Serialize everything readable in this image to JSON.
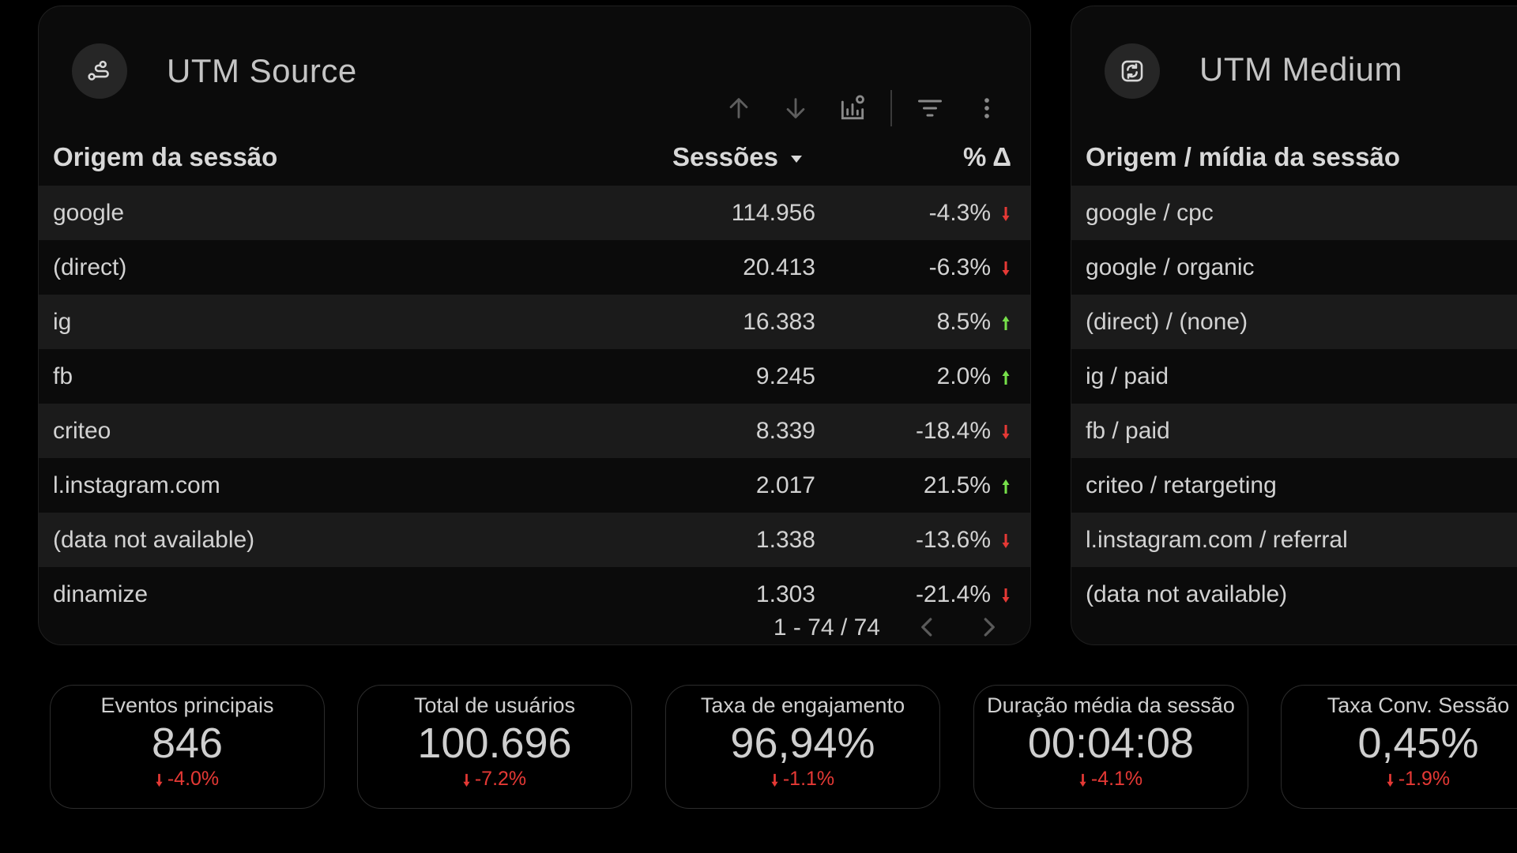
{
  "colors": {
    "up": "#76e04a",
    "down": "#e53935",
    "icon_stroke": "#d8d8d8"
  },
  "source_panel": {
    "title": "UTM Source",
    "icon": "path-share-icon",
    "toolbar": [
      "sort-ascending-icon",
      "sort-descending-icon",
      "chart-settings-icon",
      "filter-icon",
      "more-vert-icon"
    ],
    "columns": {
      "name": "Origem da sessão",
      "sessions": "Sessões",
      "pct": "% Δ"
    },
    "rows": [
      {
        "name": "google",
        "sessions": "114.956",
        "pct": "-4.3%",
        "dir": "down"
      },
      {
        "name": "(direct)",
        "sessions": "20.413",
        "pct": "-6.3%",
        "dir": "down"
      },
      {
        "name": "ig",
        "sessions": "16.383",
        "pct": "8.5%",
        "dir": "up"
      },
      {
        "name": "fb",
        "sessions": "9.245",
        "pct": "2.0%",
        "dir": "up"
      },
      {
        "name": "criteo",
        "sessions": "8.339",
        "pct": "-18.4%",
        "dir": "down"
      },
      {
        "name": "l.instagram.com",
        "sessions": "2.017",
        "pct": "21.5%",
        "dir": "up"
      },
      {
        "name": "(data not available)",
        "sessions": "1.338",
        "pct": "-13.6%",
        "dir": "down"
      },
      {
        "name": "dinamize",
        "sessions": "1.303",
        "pct": "-21.4%",
        "dir": "down"
      }
    ],
    "pager": {
      "range": "1 - 74 / 74",
      "prev_icon": "chevron-left-icon",
      "next_icon": "chevron-right-icon"
    }
  },
  "medium_panel": {
    "title": "UTM Medium",
    "icon": "sync-icon",
    "columns": {
      "name": "Origem / mídia da sessão"
    },
    "rows": [
      {
        "name": "google / cpc"
      },
      {
        "name": "google / organic"
      },
      {
        "name": "(direct) / (none)"
      },
      {
        "name": "ig / paid"
      },
      {
        "name": "fb / paid"
      },
      {
        "name": "criteo / retargeting"
      },
      {
        "name": "l.instagram.com / referral"
      },
      {
        "name": "(data not available)"
      }
    ]
  },
  "kpis": [
    {
      "label": "Eventos principais",
      "value": "846",
      "delta": "-4.0%",
      "dir": "down"
    },
    {
      "label": "Total de usuários",
      "value": "100.696",
      "delta": "-7.2%",
      "dir": "down"
    },
    {
      "label": "Taxa de engajamento",
      "value": "96,94%",
      "delta": "-1.1%",
      "dir": "down"
    },
    {
      "label": "Duração média da sessão",
      "value": "00:04:08",
      "delta": "-4.1%",
      "dir": "down"
    },
    {
      "label": "Taxa Conv. Sessão",
      "value": "0,45%",
      "delta": "-1.9%",
      "dir": "down"
    }
  ]
}
